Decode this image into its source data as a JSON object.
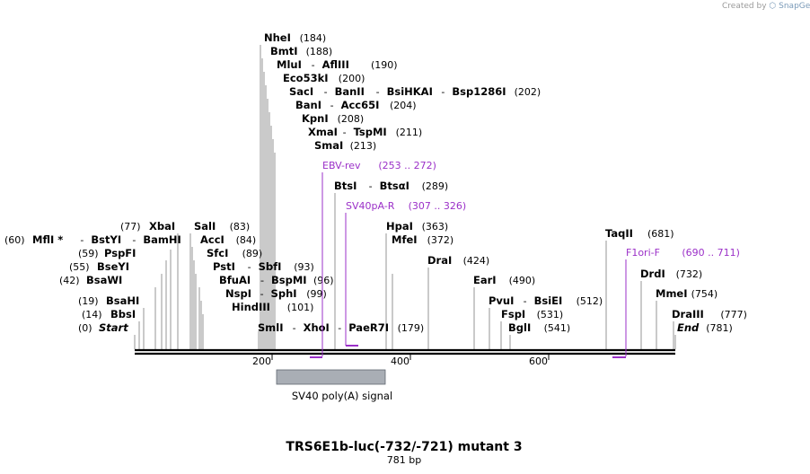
{
  "credit": {
    "prefix": "Created by",
    "brand": "SnapGene"
  },
  "map": {
    "title": "TRS6E1b-luc(-732/-721) mutant 3",
    "subtitle": "781 bp",
    "total_bp": 781,
    "ticks": [
      "200",
      "400",
      "600"
    ],
    "feature": {
      "name": "SV40 poly(A) signal",
      "color": "#a9aeb5"
    },
    "enzyme_groups": [
      {
        "names": [
          "NheI"
        ],
        "pos": "(184)"
      },
      {
        "names": [
          "BmtI"
        ],
        "pos": "(188)"
      },
      {
        "names": [
          "MluI",
          "AflIII"
        ],
        "pos": "(190)"
      },
      {
        "names": [
          "Eco53kI"
        ],
        "pos": "(200)"
      },
      {
        "names": [
          "SacI",
          "BanII",
          "BsiHKAI",
          "Bsp1286I"
        ],
        "pos": "(202)"
      },
      {
        "names": [
          "BanI",
          "Acc65I"
        ],
        "pos": "(204)"
      },
      {
        "names": [
          "KpnI"
        ],
        "pos": "(208)"
      },
      {
        "names": [
          "XmaI",
          "TspMI"
        ],
        "pos": "(211)"
      },
      {
        "names": [
          "SmaI"
        ],
        "pos": "(213)"
      },
      {
        "names": [
          "BtsI",
          "BtsαI"
        ],
        "pos": "(289)"
      },
      {
        "names": [
          "HpaI"
        ],
        "pos": "(363)"
      },
      {
        "names": [
          "MfeI"
        ],
        "pos": "(372)"
      },
      {
        "names": [
          "DraI"
        ],
        "pos": "(424)"
      },
      {
        "names": [
          "EarI"
        ],
        "pos": "(490)"
      },
      {
        "names": [
          "PvuI",
          "BsiEI"
        ],
        "pos": "(512)"
      },
      {
        "names": [
          "FspI"
        ],
        "pos": "(531)"
      },
      {
        "names": [
          "BglI"
        ],
        "pos": "(541)"
      },
      {
        "names": [
          "TaqII"
        ],
        "pos": "(681)"
      },
      {
        "names": [
          "DrdI"
        ],
        "pos": "(732)"
      },
      {
        "names": [
          "MmeI"
        ],
        "pos": "(754)"
      },
      {
        "names": [
          "DraIII"
        ],
        "pos": "(777)"
      },
      {
        "names": [
          "End"
        ],
        "pos": "(781)"
      },
      {
        "names": [
          "XbaI"
        ],
        "pos": "(77)"
      },
      {
        "names": [
          "MflI *",
          "BstYI",
          "BamHI"
        ],
        "pos": "(60)"
      },
      {
        "names": [
          "PspFI"
        ],
        "pos": "(59)"
      },
      {
        "names": [
          "BseYI"
        ],
        "pos": "(55)"
      },
      {
        "names": [
          "BsaWI"
        ],
        "pos": "(42)"
      },
      {
        "names": [
          "BsaHI"
        ],
        "pos": "(19)"
      },
      {
        "names": [
          "BbsI"
        ],
        "pos": "(14)"
      },
      {
        "names": [
          "Start"
        ],
        "pos": "(0)"
      },
      {
        "names": [
          "SalI"
        ],
        "pos": "(83)"
      },
      {
        "names": [
          "AccI"
        ],
        "pos": "(84)"
      },
      {
        "names": [
          "SfcI"
        ],
        "pos": "(89)"
      },
      {
        "names": [
          "PstI",
          "SbfI"
        ],
        "pos": "(93)"
      },
      {
        "names": [
          "BfuAI",
          "BspMI"
        ],
        "pos": "(96)"
      },
      {
        "names": [
          "NspI",
          "SphI"
        ],
        "pos": "(99)"
      },
      {
        "names": [
          "HindIII"
        ],
        "pos": "(101)"
      },
      {
        "names": [
          "SmlI",
          "XhoI",
          "PaeR7I"
        ],
        "pos": "(179)"
      }
    ],
    "primers": [
      {
        "name": "EBV-rev",
        "range": "(253 .. 272)"
      },
      {
        "name": "SV40pA-R",
        "range": "(307 .. 326)"
      },
      {
        "name": "F1ori-F",
        "range": "(690 .. 711)"
      }
    ],
    "colors": {
      "primer": "#9b30c8",
      "backbone": "#000000"
    }
  }
}
